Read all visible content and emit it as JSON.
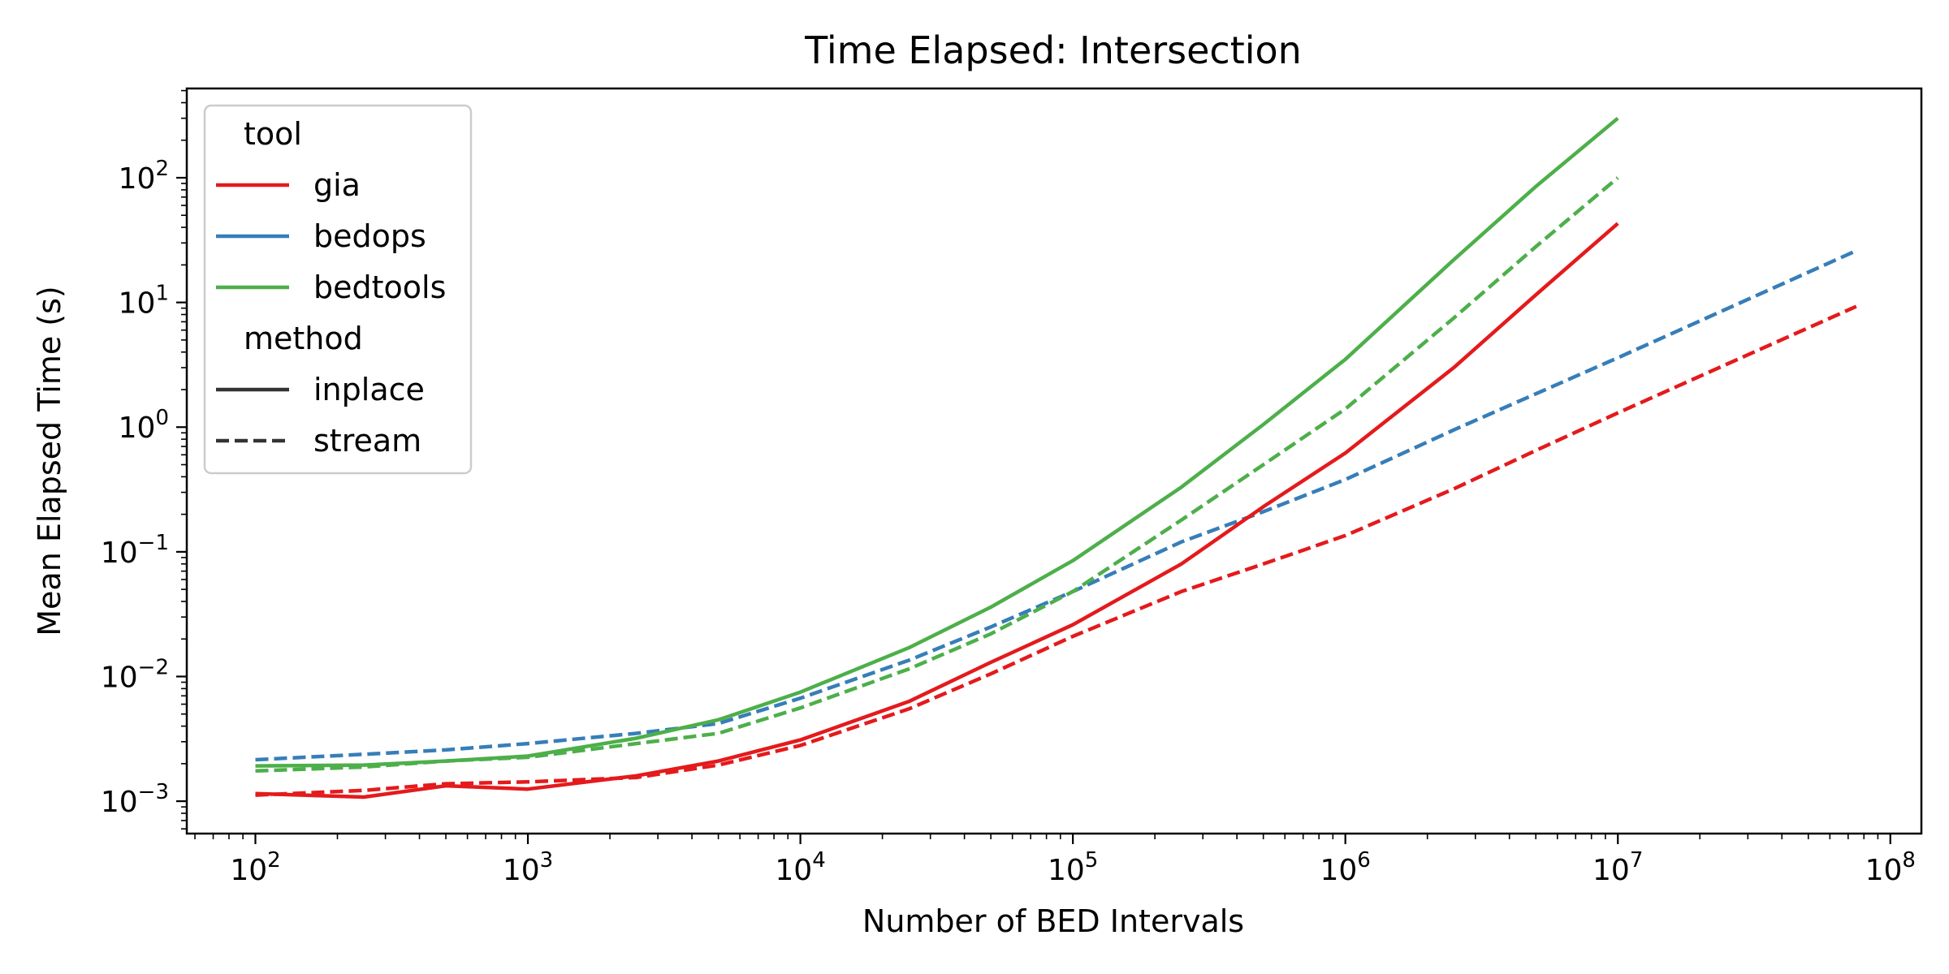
{
  "chart_data": {
    "type": "line",
    "title": "Time Elapsed: Intersection",
    "xlabel": "Number of BED Intervals",
    "ylabel": "Mean Elapsed Time (s)",
    "xscale": "log",
    "yscale": "log",
    "xlim": [
      56,
      130000000
    ],
    "ylim": [
      0.00055,
      520
    ],
    "x_ticks": [
      {
        "value": 100,
        "base": "10",
        "exp": "2"
      },
      {
        "value": 1000,
        "base": "10",
        "exp": "3"
      },
      {
        "value": 10000,
        "base": "10",
        "exp": "4"
      },
      {
        "value": 100000,
        "base": "10",
        "exp": "5"
      },
      {
        "value": 1000000,
        "base": "10",
        "exp": "6"
      },
      {
        "value": 10000000,
        "base": "10",
        "exp": "7"
      },
      {
        "value": 100000000,
        "base": "10",
        "exp": "8"
      }
    ],
    "y_ticks": [
      {
        "value": 0.001,
        "base": "10",
        "exp": "−3"
      },
      {
        "value": 0.01,
        "base": "10",
        "exp": "−2"
      },
      {
        "value": 0.1,
        "base": "10",
        "exp": "−1"
      },
      {
        "value": 1,
        "base": "10",
        "exp": "0"
      },
      {
        "value": 10,
        "base": "10",
        "exp": "1"
      },
      {
        "value": 100,
        "base": "10",
        "exp": "2"
      }
    ],
    "grid": false,
    "legend_position": "top-left",
    "legend": {
      "tool_title": "tool",
      "method_title": "method",
      "tools": [
        {
          "name": "gia",
          "color": "#e41a1c"
        },
        {
          "name": "bedops",
          "color": "#377eb8"
        },
        {
          "name": "bedtools",
          "color": "#4daf4a"
        }
      ],
      "methods": [
        {
          "name": "inplace",
          "dash": "solid"
        },
        {
          "name": "stream",
          "dash": "dashed"
        }
      ]
    },
    "series": [
      {
        "tool": "bedops",
        "method": "stream",
        "x": [
          100,
          250,
          500,
          1000,
          2500,
          5000,
          10000,
          25000,
          50000,
          100000,
          250000,
          500000,
          1000000,
          2500000,
          5000000,
          10000000,
          75000000
        ],
        "y": [
          0.00215,
          0.00238,
          0.00258,
          0.0029,
          0.0035,
          0.0042,
          0.0067,
          0.0135,
          0.025,
          0.048,
          0.12,
          0.21,
          0.38,
          0.95,
          1.85,
          3.6,
          26
        ]
      },
      {
        "tool": "gia",
        "method": "stream",
        "x": [
          100,
          250,
          500,
          1000,
          2500,
          5000,
          10000,
          25000,
          50000,
          100000,
          250000,
          500000,
          1000000,
          2500000,
          5000000,
          10000000,
          75000000
        ],
        "y": [
          0.00112,
          0.00122,
          0.00138,
          0.00143,
          0.00155,
          0.00195,
          0.0028,
          0.0055,
          0.0105,
          0.021,
          0.048,
          0.08,
          0.135,
          0.32,
          0.65,
          1.3,
          9.3
        ]
      },
      {
        "tool": "bedtools",
        "method": "stream",
        "x": [
          100,
          250,
          500,
          1000,
          2500,
          5000,
          10000,
          25000,
          50000,
          100000,
          250000,
          500000,
          1000000,
          2500000,
          5000000,
          10000000
        ],
        "y": [
          0.00175,
          0.00188,
          0.0021,
          0.00225,
          0.0029,
          0.0035,
          0.0056,
          0.0115,
          0.022,
          0.048,
          0.18,
          0.5,
          1.4,
          7.5,
          28,
          100
        ]
      },
      {
        "tool": "gia",
        "method": "inplace",
        "x": [
          100,
          250,
          500,
          1000,
          2500,
          5000,
          10000,
          25000,
          50000,
          100000,
          250000,
          500000,
          1000000,
          2500000,
          5000000,
          10000000
        ],
        "y": [
          0.00115,
          0.00108,
          0.00133,
          0.00125,
          0.0016,
          0.0021,
          0.0031,
          0.0063,
          0.013,
          0.026,
          0.08,
          0.23,
          0.62,
          3.0,
          11.5,
          43
        ]
      },
      {
        "tool": "bedtools",
        "method": "inplace",
        "x": [
          100,
          250,
          500,
          1000,
          2500,
          5000,
          10000,
          25000,
          50000,
          100000,
          250000,
          500000,
          1000000,
          2500000,
          5000000,
          10000000
        ],
        "y": [
          0.00192,
          0.00195,
          0.0021,
          0.0023,
          0.0032,
          0.0045,
          0.0075,
          0.017,
          0.036,
          0.085,
          0.33,
          1.05,
          3.5,
          22,
          85,
          300
        ]
      }
    ]
  }
}
